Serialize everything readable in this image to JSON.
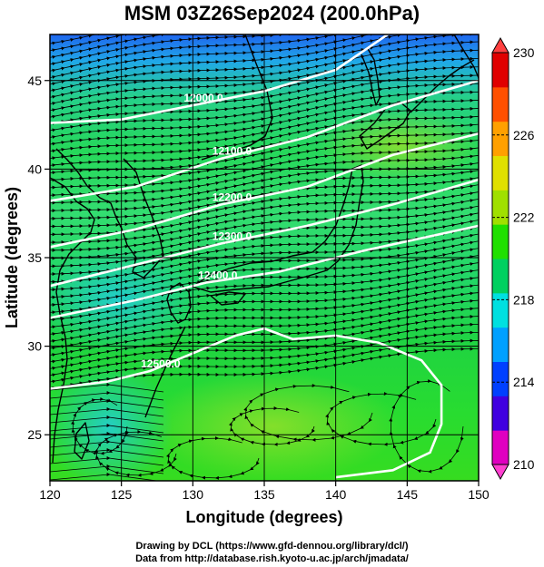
{
  "title": "MSM 03Z26Sep2024 (200.0hPa)",
  "x_axis": {
    "label": "Longitude (degrees)",
    "ticks": [
      120,
      125,
      130,
      135,
      140,
      145,
      150
    ],
    "range": [
      120,
      150
    ]
  },
  "y_axis": {
    "label": "Latitude  (degrees)",
    "ticks": [
      25,
      30,
      35,
      40,
      45
    ],
    "range": [
      22.4,
      47.6
    ]
  },
  "colorbar": {
    "min": 210,
    "max": 230,
    "ticks": [
      210,
      214,
      218,
      222,
      226,
      230
    ],
    "colors": [
      "#e000c0",
      "#4000e0",
      "#0040ff",
      "#00a0ff",
      "#00e0e0",
      "#00d060",
      "#20e000",
      "#a0e000",
      "#e0e000",
      "#ffa000",
      "#ff5000",
      "#e00000"
    ]
  },
  "contours": [
    {
      "label": "12000.0",
      "path": [
        [
          120,
          42.6
        ],
        [
          125,
          42.8
        ],
        [
          130,
          43.6
        ],
        [
          135,
          44.4
        ],
        [
          140,
          45.6
        ],
        [
          144,
          47.8
        ]
      ]
    },
    {
      "label": "12100.0",
      "path": [
        [
          120,
          38.2
        ],
        [
          126,
          39.0
        ],
        [
          132,
          40.6
        ],
        [
          138,
          41.8
        ],
        [
          144,
          43.6
        ],
        [
          150,
          45.0
        ]
      ]
    },
    {
      "label": "12200.0",
      "path": [
        [
          120,
          35.6
        ],
        [
          126,
          36.6
        ],
        [
          132,
          38.0
        ],
        [
          138,
          39.0
        ],
        [
          144,
          40.8
        ],
        [
          150,
          42.0
        ]
      ]
    },
    {
      "label": "12300.0",
      "path": [
        [
          120,
          33.4
        ],
        [
          126,
          34.6
        ],
        [
          132,
          35.8
        ],
        [
          138,
          36.8
        ],
        [
          144,
          38.0
        ],
        [
          150,
          39.4
        ]
      ]
    },
    {
      "label": "12400.0",
      "path": [
        [
          120,
          31.6
        ],
        [
          126,
          32.6
        ],
        [
          131,
          33.6
        ],
        [
          136,
          34.2
        ],
        [
          142,
          35.4
        ],
        [
          150,
          36.8
        ]
      ]
    },
    {
      "label": "12500.0",
      "path": [
        [
          120,
          27.6
        ],
        [
          124,
          28.0
        ],
        [
          127,
          28.6
        ],
        [
          130,
          29.6
        ],
        [
          133,
          30.6
        ],
        [
          135,
          31.0
        ],
        [
          137,
          30.4
        ],
        [
          140,
          30.6
        ],
        [
          143,
          30.2
        ],
        [
          146,
          29.2
        ],
        [
          147.4,
          27.8
        ],
        [
          147.4,
          25.6
        ],
        [
          146.6,
          24.0
        ],
        [
          144,
          23.0
        ],
        [
          140,
          22.6
        ]
      ]
    }
  ],
  "credits": [
    "Drawing by DCL (https://www.gfd-dennou.org/library/dcl/)",
    "Data from http://database.rish.kyoto-u.ac.jp/arch/jmadata/"
  ]
}
